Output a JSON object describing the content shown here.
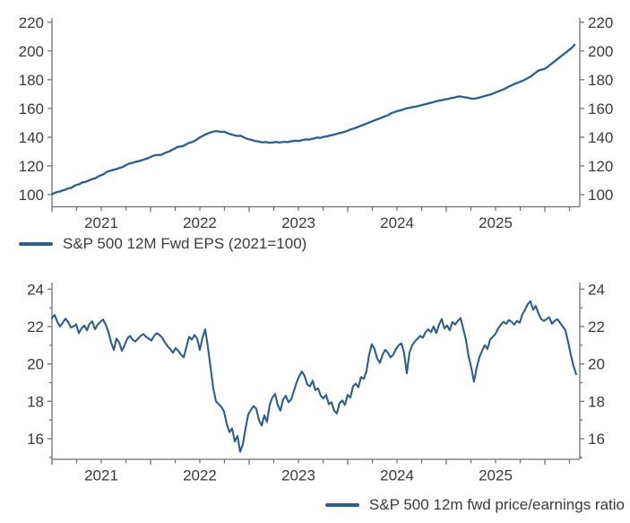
{
  "page": {
    "background": "#ffffff"
  },
  "chart_data": [
    {
      "type": "line",
      "title": "",
      "legend": "S&P 500 12M Fwd EPS (2021=100)",
      "legend_position": "bottom-left",
      "line_color": "#2f5d8c",
      "axis_color": "#6e6e6e",
      "text_color": "#3a3a3a",
      "x_tick_labels": [
        "2021",
        "2022",
        "2023",
        "2024",
        "2025"
      ],
      "x_label_u": [
        0.0934,
        0.2801,
        0.4669,
        0.6537,
        0.8404
      ],
      "x_tick_u": [
        0.0,
        0.0467,
        0.0934,
        0.1401,
        0.1868,
        0.2335,
        0.2801,
        0.3268,
        0.3735,
        0.4202,
        0.4669,
        0.5136,
        0.5603,
        0.607,
        0.6537,
        0.7003,
        0.747,
        0.7937,
        0.8404,
        0.8871,
        0.9338,
        0.9805
      ],
      "x_major_tick_idx": [
        0,
        4,
        8,
        12,
        16,
        20
      ],
      "y_ticks": [
        100,
        120,
        140,
        160,
        180,
        200,
        220
      ],
      "y_minor_ticks": [],
      "ylim": [
        91.5,
        223.0
      ],
      "grid": false,
      "series": [
        {
          "name": "S&P 500 12M Fwd EPS (2021=100)",
          "u_end": 0.99,
          "values": [
            100.3,
            101.2,
            101.9,
            102.1,
            103.0,
            103.4,
            104.4,
            104.6,
            105.9,
            106.8,
            107.2,
            108.4,
            108.7,
            109.4,
            110.3,
            111.0,
            111.4,
            112.8,
            113.5,
            114.3,
            115.8,
            116.4,
            116.9,
            117.4,
            118.1,
            118.7,
            119.3,
            120.5,
            121.4,
            121.9,
            122.4,
            123.0,
            123.4,
            124.0,
            124.7,
            125.3,
            126.2,
            127.0,
            127.5,
            127.6,
            127.7,
            128.8,
            129.5,
            130.2,
            131.2,
            132.2,
            133.2,
            133.5,
            133.8,
            134.9,
            135.9,
            136.4,
            137.2,
            138.4,
            139.8,
            140.8,
            141.8,
            142.6,
            143.3,
            143.8,
            144.2,
            143.9,
            143.6,
            143.8,
            142.9,
            142.2,
            141.6,
            141.1,
            140.8,
            141.0,
            139.9,
            139.1,
            138.5,
            138.1,
            137.4,
            137.1,
            136.7,
            136.3,
            136.6,
            136.2,
            136.1,
            136.4,
            136.6,
            136.3,
            136.5,
            136.8,
            136.5,
            136.9,
            137.2,
            137.5,
            137.2,
            137.7,
            138.1,
            138.5,
            138.2,
            138.7,
            139.2,
            139.7,
            139.4,
            140.0,
            140.5,
            140.8,
            141.2,
            141.7,
            142.2,
            142.8,
            143.2,
            143.7,
            144.4,
            145.2,
            145.8,
            146.5,
            147.2,
            148.0,
            148.7,
            149.5,
            150.2,
            151.0,
            151.7,
            152.5,
            153.2,
            154.0,
            154.7,
            155.4,
            156.7,
            157.2,
            158.0,
            158.4,
            159.0,
            159.7,
            160.2,
            160.5,
            161.0,
            161.2,
            161.7,
            162.2,
            162.7,
            163.2,
            163.7,
            164.2,
            164.7,
            165.2,
            165.5,
            166.0,
            166.4,
            166.7,
            167.2,
            167.5,
            168.0,
            168.4,
            168.0,
            167.7,
            167.4,
            167.0,
            166.7,
            167.0,
            167.4,
            168.0,
            168.5,
            169.0,
            169.5,
            170.2,
            171.0,
            171.7,
            172.5,
            173.2,
            174.2,
            175.2,
            176.0,
            177.0,
            177.7,
            178.5,
            179.2,
            180.2,
            181.2,
            182.2,
            183.7,
            185.2,
            186.5,
            187.0,
            187.5,
            188.7,
            190.2,
            191.7,
            193.2,
            194.7,
            196.2,
            197.7,
            199.2,
            200.7,
            202.2,
            204.3
          ]
        }
      ]
    },
    {
      "type": "line",
      "title": "",
      "legend": "S&P 500 12m fwd price/earnings ratio",
      "legend_position": "bottom-right",
      "line_color": "#2f5d8c",
      "axis_color": "#6e6e6e",
      "text_color": "#3a3a3a",
      "x_tick_labels": [
        "2021",
        "2022",
        "2023",
        "2024",
        "2025"
      ],
      "x_label_u": [
        0.0934,
        0.2801,
        0.4669,
        0.6537,
        0.8404
      ],
      "x_tick_u": [
        0.0,
        0.0467,
        0.0934,
        0.1401,
        0.1868,
        0.2335,
        0.2801,
        0.3268,
        0.3735,
        0.4202,
        0.4669,
        0.5136,
        0.5603,
        0.607,
        0.6537,
        0.7003,
        0.747,
        0.7937,
        0.8404,
        0.8871,
        0.9338,
        0.9805
      ],
      "x_major_tick_idx": [
        0,
        4,
        8,
        12,
        16,
        20
      ],
      "y_ticks": [
        16,
        18,
        20,
        22,
        24
      ],
      "y_minor_ticks": [
        15,
        17,
        19,
        21,
        23
      ],
      "ylim": [
        14.9,
        24.35
      ],
      "grid": false,
      "series": [
        {
          "name": "S&P 500 12m fwd price/earnings ratio",
          "u_end": 0.993,
          "values": [
            22.45,
            22.62,
            22.25,
            22.0,
            22.2,
            22.42,
            22.25,
            21.95,
            22.0,
            22.12,
            21.65,
            21.9,
            22.05,
            21.8,
            22.15,
            22.28,
            21.85,
            22.1,
            22.25,
            22.38,
            22.1,
            21.7,
            21.15,
            20.75,
            21.35,
            21.15,
            20.7,
            21.0,
            21.35,
            21.5,
            21.3,
            21.2,
            21.35,
            21.5,
            21.6,
            21.45,
            21.35,
            21.25,
            21.5,
            21.65,
            21.55,
            21.4,
            21.15,
            20.95,
            20.8,
            20.6,
            20.85,
            20.7,
            20.5,
            20.35,
            20.9,
            21.45,
            21.3,
            21.55,
            21.35,
            20.75,
            21.4,
            21.85,
            20.9,
            19.8,
            18.7,
            18.0,
            17.85,
            17.7,
            17.45,
            16.8,
            16.35,
            16.55,
            15.85,
            16.15,
            15.3,
            15.7,
            16.55,
            17.3,
            17.55,
            17.75,
            17.6,
            17.0,
            16.7,
            17.25,
            16.9,
            17.8,
            18.2,
            18.4,
            17.8,
            17.5,
            18.1,
            18.3,
            17.95,
            18.1,
            18.55,
            19.0,
            19.35,
            19.6,
            19.35,
            18.9,
            18.8,
            19.1,
            18.6,
            18.7,
            18.3,
            18.15,
            18.35,
            17.85,
            17.95,
            17.5,
            17.35,
            17.9,
            18.05,
            17.8,
            18.35,
            18.2,
            18.8,
            18.95,
            18.75,
            19.3,
            19.2,
            19.6,
            20.5,
            21.05,
            20.8,
            20.3,
            20.05,
            20.5,
            20.75,
            20.6,
            20.35,
            20.5,
            20.8,
            21.0,
            21.1,
            20.6,
            19.5,
            20.6,
            21.0,
            21.2,
            21.35,
            21.5,
            21.4,
            21.7,
            21.85,
            21.7,
            22.0,
            21.65,
            22.1,
            22.4,
            21.9,
            22.05,
            21.8,
            22.25,
            22.1,
            22.3,
            22.45,
            21.9,
            21.3,
            20.4,
            19.8,
            19.05,
            19.8,
            20.35,
            20.7,
            21.0,
            20.8,
            21.3,
            21.45,
            21.6,
            21.9,
            22.1,
            22.25,
            22.15,
            22.35,
            22.25,
            22.1,
            22.3,
            22.2,
            22.65,
            22.9,
            23.2,
            23.35,
            22.9,
            23.1,
            22.7,
            22.4,
            22.3,
            22.4,
            22.5,
            22.15,
            22.3,
            22.4,
            22.2,
            22.0,
            21.8,
            21.2,
            20.5,
            19.9,
            19.45
          ]
        }
      ]
    }
  ]
}
